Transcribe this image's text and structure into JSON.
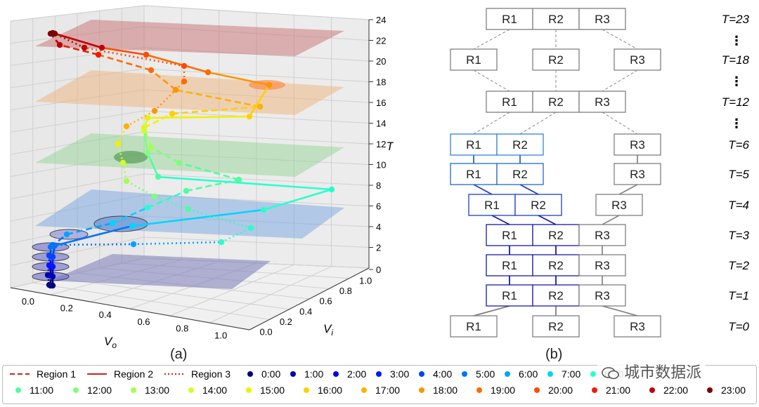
{
  "captions": {
    "a": "(a)",
    "b": "(b)"
  },
  "panel_a": {
    "z_axis_label": "T",
    "x_axis_label": "V",
    "x_axis_sub": "o",
    "y_axis_label": "V",
    "y_axis_sub": "i",
    "z_ticks": [
      "0",
      "2",
      "4",
      "6",
      "8",
      "10",
      "12",
      "14",
      "16",
      "18",
      "20",
      "22",
      "24"
    ],
    "x_ticks": [
      "0.0",
      "0.2",
      "0.4",
      "0.6",
      "0.8",
      "1.0"
    ],
    "y_ticks": [
      "0.0",
      "0.2",
      "0.4",
      "0.6",
      "0.8",
      "1.0"
    ]
  },
  "panel_b": {
    "levels": [
      {
        "t": "T=23",
        "regions": [
          "R1",
          "R2",
          "R3"
        ],
        "layout": "merged3",
        "color": "#808080"
      },
      {
        "t": "T=18",
        "regions": [
          "R1",
          "R2",
          "R3"
        ],
        "layout": "split",
        "color": "#808080"
      },
      {
        "t": "T=12",
        "regions": [
          "R1",
          "R2",
          "R3"
        ],
        "layout": "merged3",
        "color": "#808080"
      },
      {
        "t": "T=6",
        "regions": [
          "R1",
          "R2",
          "R3"
        ],
        "layout": "merged2",
        "color": "#2f86d6"
      },
      {
        "t": "T=5",
        "regions": [
          "R1",
          "R2",
          "R3"
        ],
        "layout": "merged2",
        "color": "#2266cc"
      },
      {
        "t": "T=4",
        "regions": [
          "R1",
          "R2",
          "R3"
        ],
        "layout": "merged2",
        "color": "#1a3fc4"
      },
      {
        "t": "T=3",
        "regions": [
          "R1",
          "R2",
          "R3"
        ],
        "layout": "merged3",
        "color": "#1a1aaa"
      },
      {
        "t": "T=2",
        "regions": [
          "R1",
          "R2",
          "R3"
        ],
        "layout": "merged3",
        "color": "#1a1aaa"
      },
      {
        "t": "T=1",
        "regions": [
          "R1",
          "R2",
          "R3"
        ],
        "layout": "merged3",
        "color": "#1a1aaa"
      },
      {
        "t": "T=0",
        "regions": [
          "R1",
          "R2",
          "R3"
        ],
        "layout": "split",
        "color": "#808080"
      }
    ],
    "ellipsis": "⋮"
  },
  "legend": {
    "regions": [
      {
        "label": "Region 1",
        "style": "dashed",
        "color": "#d42020"
      },
      {
        "label": "Region 2",
        "style": "solid",
        "color": "#d42020"
      },
      {
        "label": "Region 3",
        "style": "dotted",
        "color": "#d42020"
      }
    ],
    "hours": [
      {
        "label": "0:00",
        "color": "#00007f"
      },
      {
        "label": "1:00",
        "color": "#0000b0"
      },
      {
        "label": "2:00",
        "color": "#0000e0"
      },
      {
        "label": "3:00",
        "color": "#0018ff"
      },
      {
        "label": "4:00",
        "color": "#0044ff"
      },
      {
        "label": "5:00",
        "color": "#0074ff"
      },
      {
        "label": "6:00",
        "color": "#00a4ff"
      },
      {
        "label": "7:00",
        "color": "#00d4ff"
      },
      {
        "label": "8:00",
        "color": "#29ffce"
      },
      {
        "label": "11:00",
        "color": "#4dff9e"
      },
      {
        "label": "12:00",
        "color": "#7dff7a"
      },
      {
        "label": "13:00",
        "color": "#a4ff52"
      },
      {
        "label": "14:00",
        "color": "#ceff29"
      },
      {
        "label": "15:00",
        "color": "#f0f000"
      },
      {
        "label": "16:00",
        "color": "#ffd000"
      },
      {
        "label": "17:00",
        "color": "#ffb000"
      },
      {
        "label": "18:00",
        "color": "#ff9400"
      },
      {
        "label": "19:00",
        "color": "#ff6a00"
      },
      {
        "label": "20:00",
        "color": "#ff4a00"
      },
      {
        "label": "21:00",
        "color": "#ee1c00"
      },
      {
        "label": "22:00",
        "color": "#c00000"
      },
      {
        "label": "23:00",
        "color": "#7f0000"
      }
    ]
  },
  "watermark": {
    "text": "城市数据派"
  }
}
